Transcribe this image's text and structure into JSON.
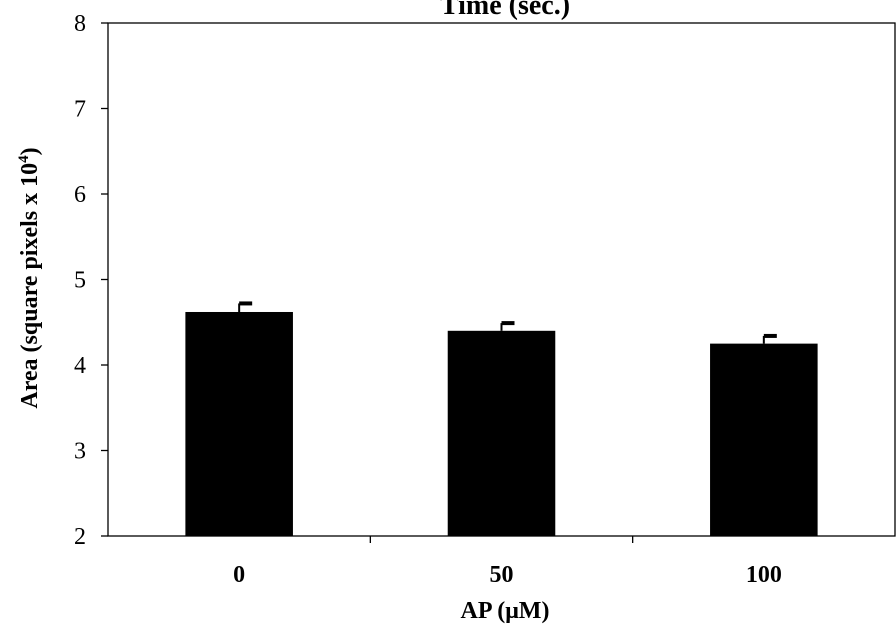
{
  "chart_data": {
    "type": "bar",
    "title": "Time (sec.)",
    "xlabel": "AP (μM)",
    "ylabel_main": "Area (square pixels x 10",
    "ylabel_sup": "4",
    "ylabel_end": ")",
    "categories": [
      "0",
      "50",
      "100"
    ],
    "values": [
      4.62,
      4.4,
      4.25
    ],
    "errors": [
      0.1,
      0.09,
      0.09
    ],
    "ylim": [
      2,
      8
    ],
    "yticks": [
      "2",
      "3",
      "4",
      "5",
      "6",
      "7",
      "8"
    ],
    "grid": false,
    "legend": "none",
    "colors": {
      "bar": "#000000",
      "axis": "#000000",
      "background": "#ffffff"
    }
  }
}
